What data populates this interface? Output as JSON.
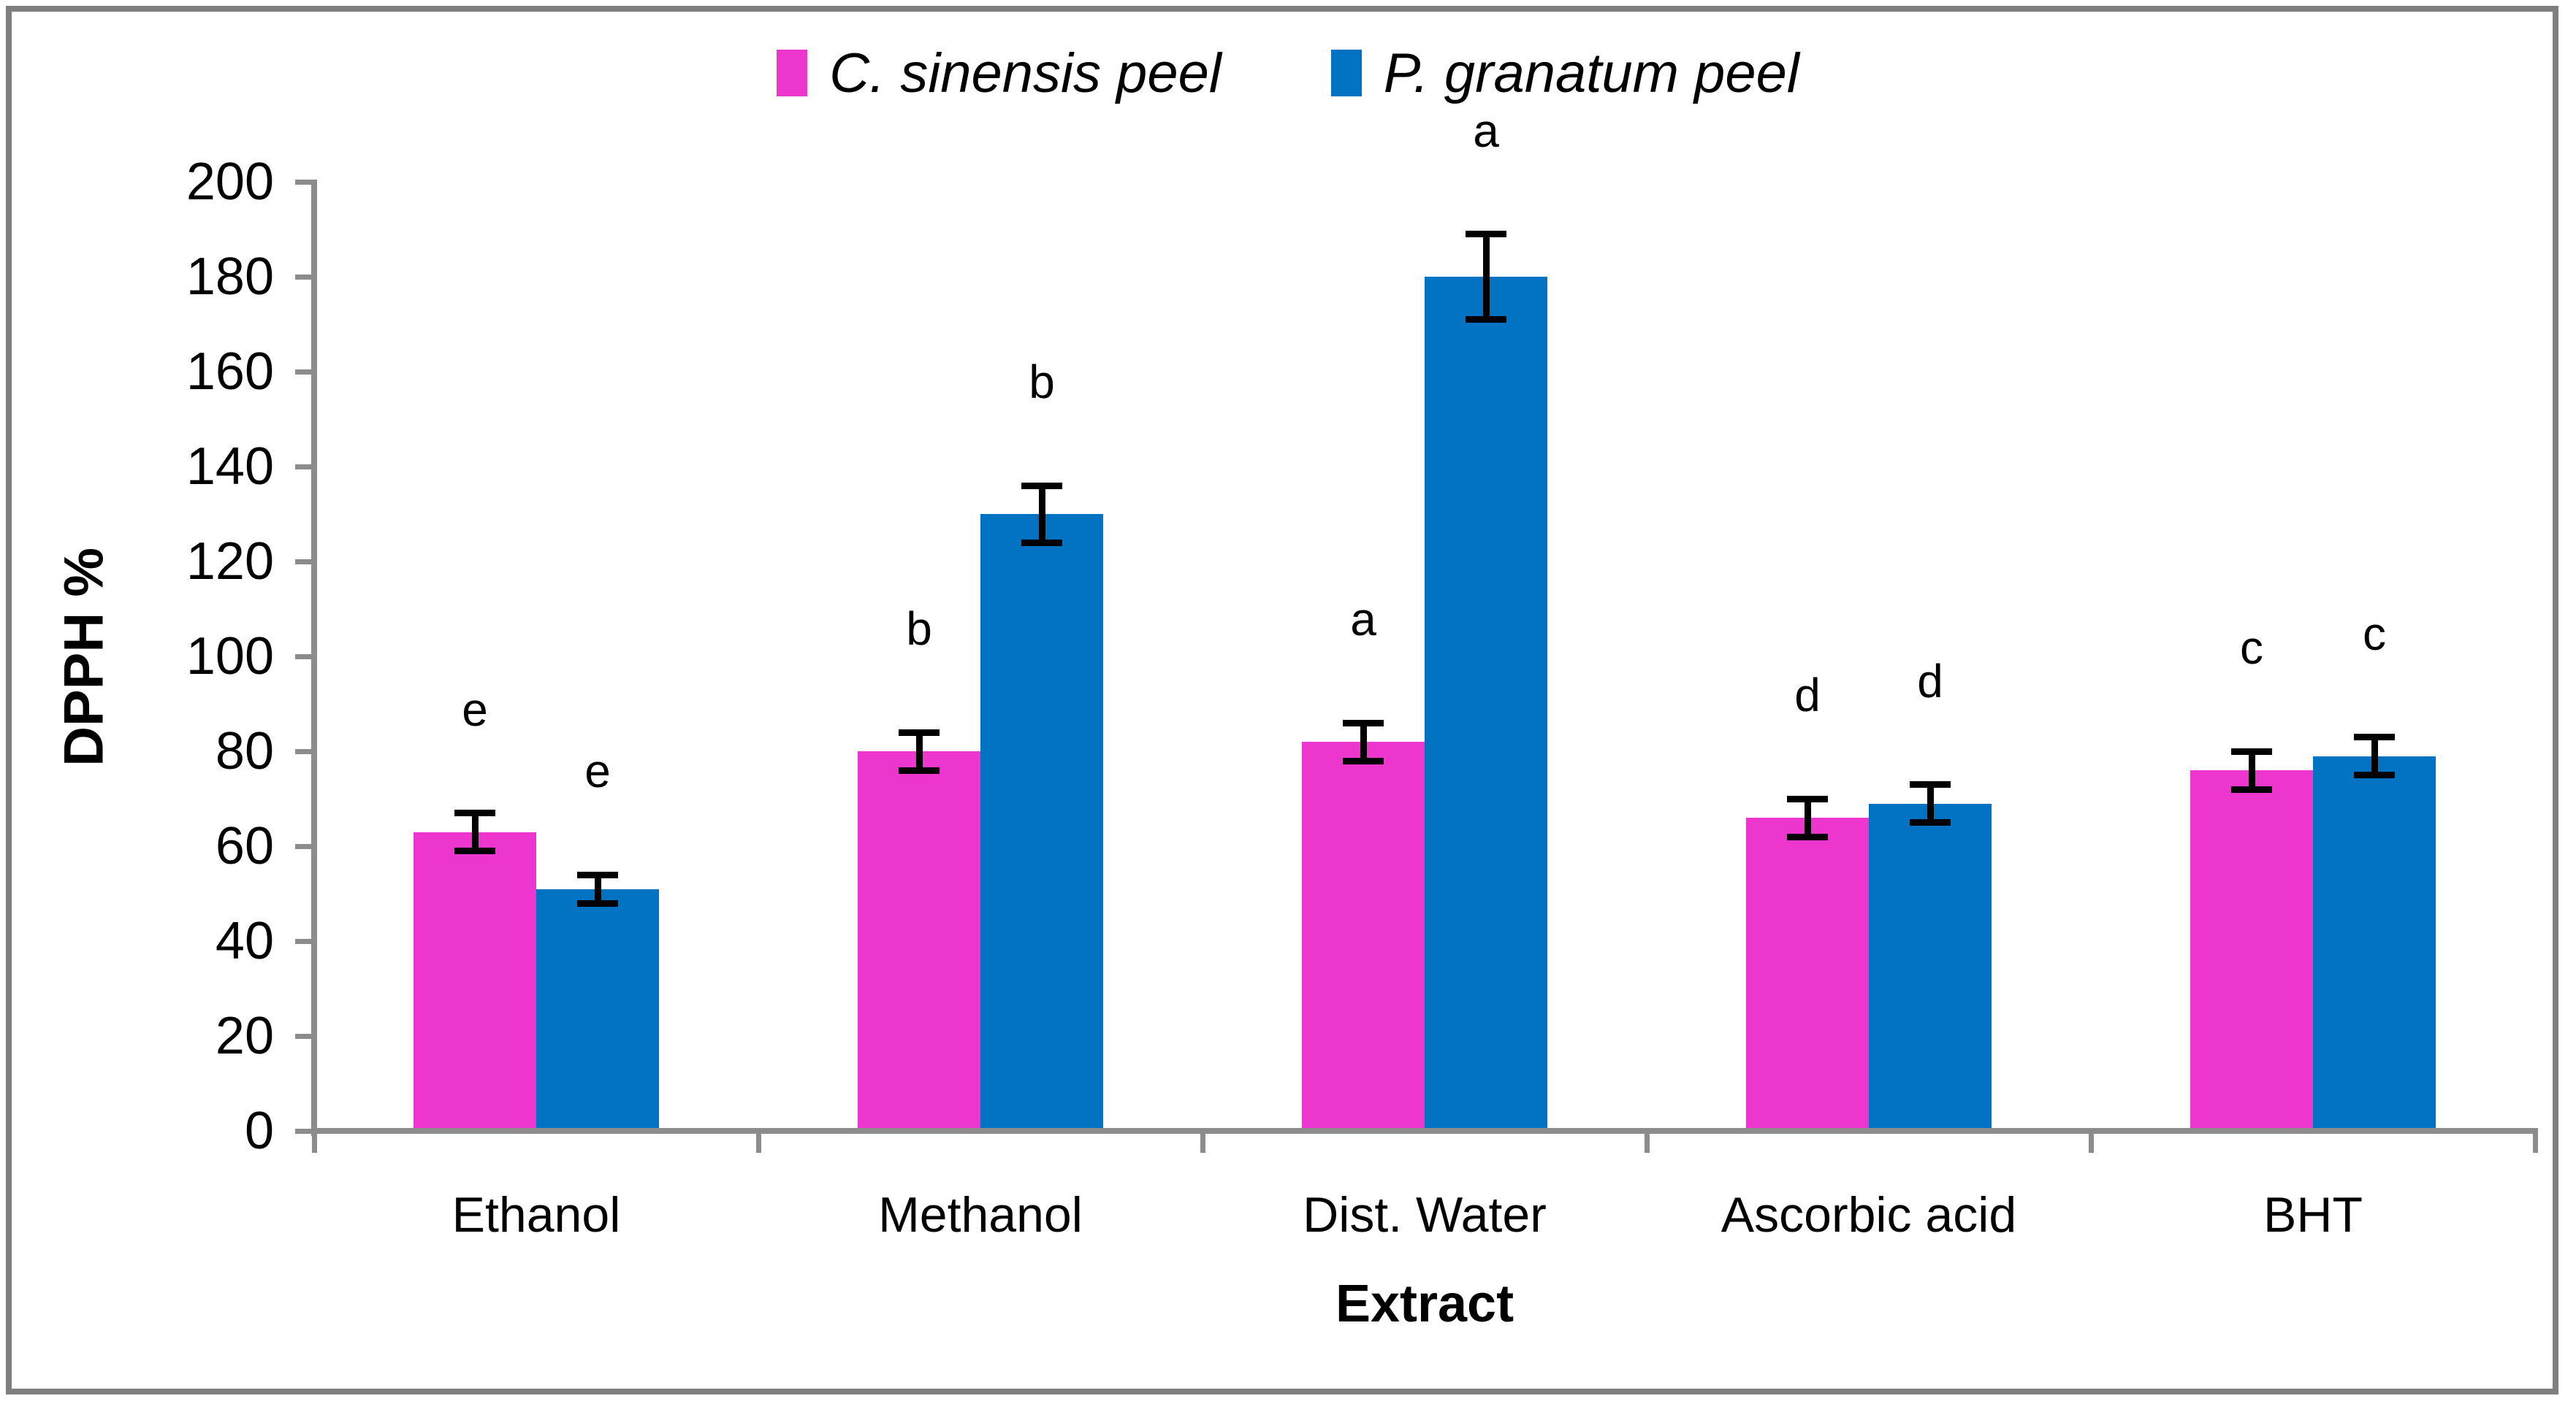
{
  "figure": {
    "legend": [
      {
        "label": "C. sinensis peel",
        "color": "#ED36CE"
      },
      {
        "label": "P. granatum peel",
        "color": "#0272C2"
      }
    ],
    "axis_color": "#8C8C8C",
    "frame_color": "#7F7F7F"
  },
  "chart_data": {
    "type": "bar",
    "title": "",
    "xlabel": "Extract",
    "ylabel": "DPPH %",
    "categories": [
      "Ethanol",
      "Methanol",
      "Dist. Water",
      "Ascorbic acid",
      "BHT"
    ],
    "series": [
      {
        "name": "C. sinensis peel",
        "color": "#ED36CE",
        "values": [
          63,
          80,
          82,
          66,
          76
        ],
        "errors": [
          4,
          4,
          4,
          4,
          4
        ],
        "sig_letters": [
          "e",
          "b",
          "a",
          "d",
          "c"
        ]
      },
      {
        "name": "P. granatum peel",
        "color": "#0272C2",
        "values": [
          51,
          130,
          180,
          69,
          79
        ],
        "errors": [
          3,
          6,
          9,
          4,
          4
        ],
        "sig_letters": [
          "e",
          "b",
          "a",
          "d",
          "c"
        ]
      }
    ],
    "ylim": [
      0,
      200
    ],
    "yticks": [
      0,
      20,
      40,
      60,
      80,
      100,
      120,
      140,
      160,
      180,
      200
    ],
    "grid": false,
    "error_bars": true,
    "legend_position": "top-center"
  }
}
